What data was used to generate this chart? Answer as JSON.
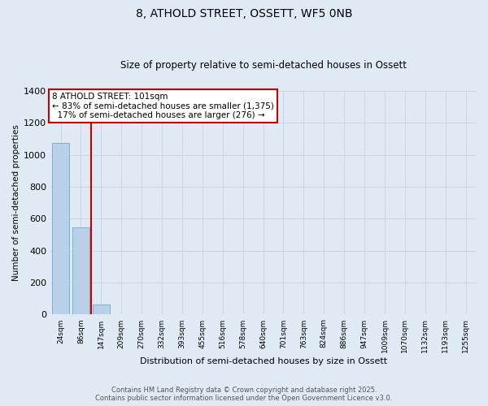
{
  "title": "8, ATHOLD STREET, OSSETT, WF5 0NB",
  "subtitle": "Size of property relative to semi-detached houses in Ossett",
  "xlabel": "Distribution of semi-detached houses by size in Ossett",
  "ylabel": "Number of semi-detached properties",
  "categories": [
    "24sqm",
    "86sqm",
    "147sqm",
    "209sqm",
    "270sqm",
    "332sqm",
    "393sqm",
    "455sqm",
    "516sqm",
    "578sqm",
    "640sqm",
    "701sqm",
    "763sqm",
    "824sqm",
    "886sqm",
    "947sqm",
    "1009sqm",
    "1070sqm",
    "1132sqm",
    "1193sqm",
    "1255sqm"
  ],
  "values": [
    1075,
    547,
    62,
    0,
    0,
    0,
    0,
    0,
    0,
    0,
    0,
    0,
    0,
    0,
    0,
    0,
    0,
    0,
    0,
    0,
    0
  ],
  "bar_color": "#b8d0e8",
  "bar_edge_color": "#7aafd4",
  "grid_color": "#c8d8e8",
  "background_color": "#e0eaf4",
  "property_line_x": 1.5,
  "property_line_color": "#cc0000",
  "annotation_line1": "8 ATHOLD STREET: 101sqm",
  "annotation_line2": "← 83% of semi-detached houses are smaller (1,375)",
  "annotation_line3": "  17% of semi-detached houses are larger (276) →",
  "annotation_box_color": "#cc0000",
  "annotation_bg": "#ffffff",
  "ylim": [
    0,
    1400
  ],
  "yticks": [
    0,
    200,
    400,
    600,
    800,
    1000,
    1200,
    1400
  ],
  "footer_line1": "Contains HM Land Registry data © Crown copyright and database right 2025.",
  "footer_line2": "Contains public sector information licensed under the Open Government Licence v3.0."
}
